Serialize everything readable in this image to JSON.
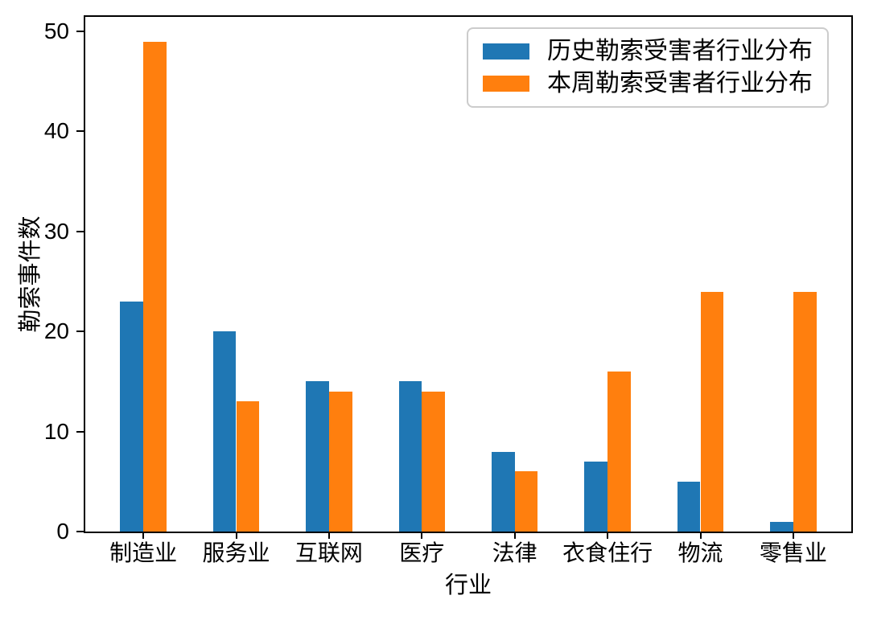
{
  "chart_data": {
    "type": "bar",
    "title": "",
    "xlabel": "行业",
    "ylabel": "勒索事件数",
    "categories": [
      "制造业",
      "服务业",
      "互联网",
      "医疗",
      "法律",
      "衣食住行",
      "物流",
      "零售业"
    ],
    "series": [
      {
        "name": "历史勒索受害者行业分布",
        "color": "#1f77b4",
        "values": [
          23,
          20,
          15,
          15,
          8,
          7,
          5,
          1
        ]
      },
      {
        "name": "本周勒索受害者行业分布",
        "color": "#ff7f0e",
        "values": [
          49,
          13,
          14,
          14,
          6,
          16,
          24,
          24
        ]
      }
    ],
    "yticks": [
      0,
      10,
      20,
      30,
      40,
      50
    ],
    "ylim": [
      0,
      51.45
    ],
    "bar_width": 0.25,
    "x_margin": 0.05,
    "grid": false,
    "legend_position": "upper right",
    "colors": {
      "axis": "#000000",
      "legend_border": "#cccccc",
      "background": "#ffffff"
    }
  }
}
